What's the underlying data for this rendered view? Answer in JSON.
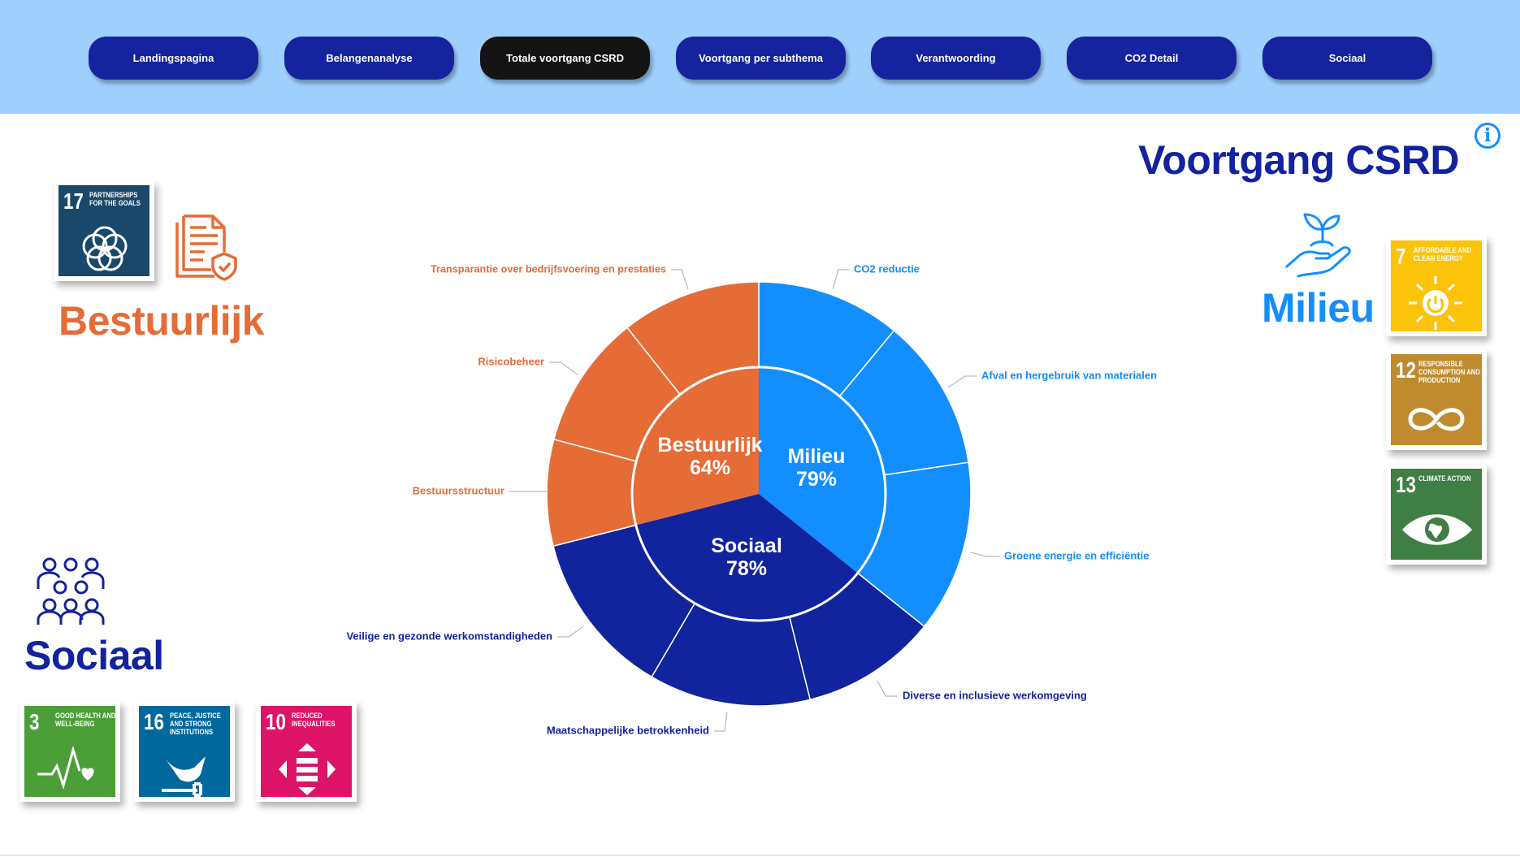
{
  "nav": {
    "items": [
      {
        "label": "Landingspagina",
        "active": false
      },
      {
        "label": "Belangenanalyse",
        "active": false
      },
      {
        "label": "Totale voortgang CSRD",
        "active": true
      },
      {
        "label": "Voortgang per subthema",
        "active": false
      },
      {
        "label": "Verantwoording",
        "active": false
      },
      {
        "label": "CO2 Detail",
        "active": false
      },
      {
        "label": "Sociaal",
        "active": false
      }
    ]
  },
  "header": {
    "title": "Voortgang CSRD",
    "info_icon": "info-icon"
  },
  "categories": {
    "bestuurlijk": "Bestuurlijk",
    "milieu": "Milieu",
    "sociaal": "Sociaal"
  },
  "sdg": {
    "g17": {
      "num": "17",
      "text": "Partnerships for the goals",
      "color": "#19486A"
    },
    "g7": {
      "num": "7",
      "text": "Affordable and clean energy",
      "color": "#FCC30B"
    },
    "g12": {
      "num": "12",
      "text": "Responsible consumption and production",
      "color": "#BF8B2E"
    },
    "g13": {
      "num": "13",
      "text": "Climate action",
      "color": "#3F7E44"
    },
    "g3": {
      "num": "3",
      "text": "Good health and well-being",
      "color": "#4C9F38"
    },
    "g16": {
      "num": "16",
      "text": "Peace, justice and strong institutions",
      "color": "#00689D"
    },
    "g10": {
      "num": "10",
      "text": "Reduced inequalities",
      "color": "#DD1367"
    }
  },
  "colors": {
    "bestuurlijk": "#E56C37",
    "milieu": "#128EFF",
    "sociaal": "#12239E",
    "nav_bg": "#9FCFFD",
    "nav_button": "#15239F",
    "nav_active": "#141414"
  },
  "chart_data": {
    "type": "sunburst",
    "groups": [
      {
        "name": "Milieu",
        "value_label": "79%",
        "value": 79,
        "color": "#128EFF",
        "children": [
          {
            "name": "CO2 reductie",
            "value": 73
          },
          {
            "name": "Afval en hergebruik van materialen",
            "value": 77
          },
          {
            "name": "Groene energie en efficiëntie",
            "value": 87
          }
        ]
      },
      {
        "name": "Sociaal",
        "value_label": "78%",
        "value": 78,
        "color": "#12239E",
        "children": [
          {
            "name": "Diverse en inclusieve werkomgeving",
            "value": 69
          },
          {
            "name": "Maatschappelijke betrokkenheid",
            "value": 82
          },
          {
            "name": "Veilige en gezonde werkomstandigheden",
            "value": 84
          }
        ]
      },
      {
        "name": "Bestuurlijk",
        "value_label": "64%",
        "value": 64,
        "color": "#E56C37",
        "children": [
          {
            "name": "Bestuursstructuur",
            "value": 54
          },
          {
            "name": "Risicobeheer",
            "value": 68
          },
          {
            "name": "Transparantie over bedrijfsvoering en prestaties",
            "value": 71
          }
        ]
      }
    ]
  }
}
